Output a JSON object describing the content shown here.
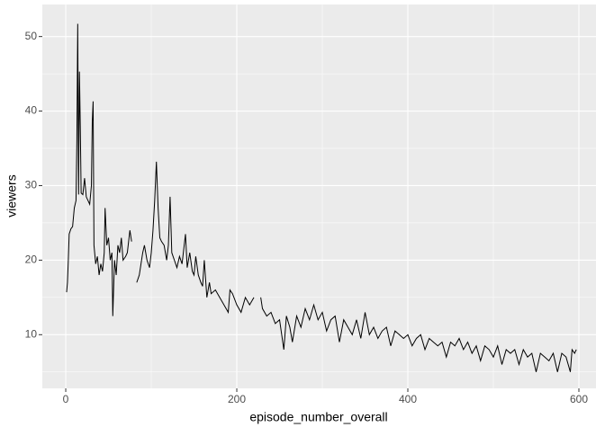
{
  "chart_data": {
    "type": "line",
    "x_label": "episode_number_overall",
    "y_label": "viewers",
    "x": [
      1,
      2,
      3,
      4,
      6,
      8,
      10,
      12,
      13,
      14,
      15,
      16,
      17,
      18,
      20,
      22,
      24,
      26,
      28,
      30,
      31,
      32,
      33,
      35,
      37,
      39,
      41,
      43,
      45,
      46,
      48,
      50,
      52,
      54,
      55,
      57,
      59,
      61,
      63,
      65,
      67,
      70,
      72,
      75,
      77,
      80,
      83,
      86,
      90,
      92,
      95,
      98,
      100,
      102,
      104,
      106,
      108,
      110,
      112,
      115,
      118,
      120,
      122,
      124,
      127,
      130,
      133,
      136,
      140,
      142,
      145,
      148,
      150,
      152,
      155,
      158,
      160,
      162,
      165,
      168,
      170,
      175,
      180,
      185,
      190,
      192,
      195,
      200,
      205,
      210,
      215,
      220,
      225,
      228,
      230,
      235,
      240,
      245,
      250,
      255,
      258,
      262,
      265,
      270,
      275,
      280,
      285,
      290,
      295,
      300,
      305,
      310,
      315,
      320,
      325,
      330,
      335,
      340,
      345,
      350,
      355,
      360,
      365,
      370,
      375,
      380,
      385,
      390,
      395,
      400,
      405,
      410,
      415,
      420,
      425,
      430,
      435,
      440,
      445,
      450,
      455,
      460,
      465,
      470,
      475,
      480,
      485,
      490,
      495,
      500,
      505,
      510,
      515,
      520,
      525,
      530,
      535,
      540,
      545,
      550,
      555,
      560,
      565,
      570,
      575,
      580,
      585,
      590,
      592,
      595,
      597
    ],
    "values": [
      15.7,
      17,
      20,
      23.5,
      24.2,
      24.5,
      27,
      28,
      36,
      51.7,
      28.8,
      45.3,
      38,
      29,
      28.8,
      31,
      28.5,
      28,
      27.5,
      30,
      38.5,
      41.3,
      22,
      19.5,
      20.5,
      18,
      19.5,
      18.5,
      21,
      27,
      22,
      23,
      20,
      21,
      12.5,
      20,
      18,
      22,
      21,
      23,
      20,
      20.5,
      21,
      24,
      22.5,
      null,
      17,
      18,
      21,
      22,
      20,
      19,
      21,
      24,
      28,
      33.2,
      27,
      23,
      22.5,
      22,
      20,
      22,
      28.5,
      21,
      20,
      19,
      20.5,
      19.5,
      23.5,
      19,
      21,
      18.5,
      18,
      20.5,
      18,
      17,
      16.5,
      20,
      15,
      17,
      15.5,
      16,
      15,
      14,
      13,
      16,
      15.5,
      14,
      13,
      15,
      14,
      15,
      null,
      15,
      13.5,
      12.5,
      13,
      11.5,
      12,
      8,
      12.5,
      11,
      9,
      12.5,
      11,
      13.5,
      12,
      14,
      12,
      13,
      10.5,
      12,
      12.5,
      9,
      12,
      11,
      10,
      12,
      9.5,
      13,
      10,
      11,
      9.5,
      10.5,
      11,
      8.5,
      10.5,
      10,
      9.5,
      10,
      8.5,
      9.5,
      10,
      8,
      9.5,
      9,
      8.5,
      9,
      7,
      9,
      8.5,
      9.5,
      8,
      9,
      7.5,
      8.5,
      6.5,
      8.5,
      8,
      7,
      8.5,
      6,
      8,
      7.5,
      8,
      6,
      8,
      7,
      7.5,
      5,
      7.5,
      7,
      6.5,
      7.5,
      5,
      7.5,
      7,
      5,
      8,
      7.5,
      8
    ],
    "color": "#000000",
    "xlim": [
      -27.4,
      620
    ],
    "xticks": [
      0,
      200,
      400,
      600
    ],
    "x_minor_grid": [
      100,
      300,
      500
    ],
    "ylim": [
      2.8,
      54.3
    ],
    "yticks": [
      10,
      20,
      30,
      40,
      50
    ],
    "y_minor_grid": [
      5,
      15,
      25,
      35,
      45
    ],
    "grid": true
  }
}
